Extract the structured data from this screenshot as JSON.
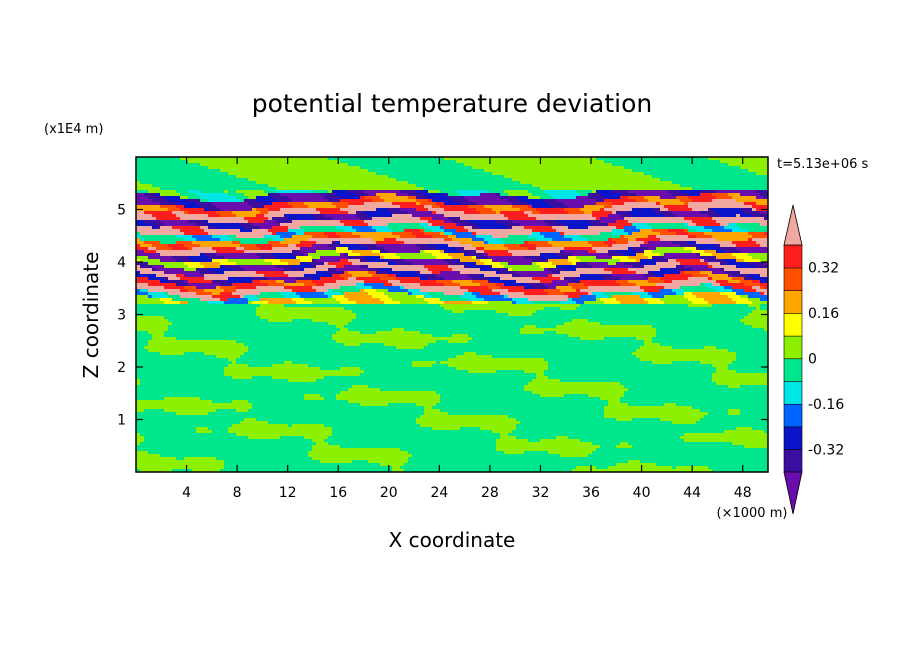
{
  "chart_data": {
    "type": "heatmap",
    "title": "potential temperature deviation",
    "xlabel": "X coordinate",
    "ylabel": "Z coordinate",
    "x_unit": "(×1000 m)",
    "y_unit": "(x1E4 m)",
    "time_label": "t=5.13e+06 s",
    "xlim": [
      0,
      50
    ],
    "ylim": [
      0,
      6
    ],
    "x_ticks": [
      4,
      8,
      12,
      16,
      20,
      24,
      28,
      32,
      36,
      40,
      44,
      48
    ],
    "y_ticks": [
      1,
      2,
      3,
      4,
      5
    ],
    "colorbar": {
      "levels": [
        -0.4,
        -0.32,
        -0.24,
        -0.16,
        -0.08,
        0,
        0.08,
        0.16,
        0.24,
        0.32,
        0.4
      ],
      "labels": [
        "0.32",
        "0.16",
        "0",
        "-0.16",
        "-0.32"
      ],
      "label_values": [
        0.32,
        0.16,
        0,
        -0.16,
        -0.32
      ],
      "colors": [
        "#6a0dad",
        "#3a0fa0",
        "#0a14c8",
        "#0064ff",
        "#00e6e6",
        "#00e68c",
        "#8cf000",
        "#ffff00",
        "#ffa500",
        "#ff5000",
        "#ff1e1e",
        "#f0a8a0"
      ],
      "extend": "both"
    },
    "bands": [
      {
        "z": 5.6,
        "value": 0.02
      },
      {
        "z": 5.45,
        "value": -0.05
      },
      {
        "z": 5.2,
        "value": -0.38
      },
      {
        "z": 5.08,
        "value": 0.28
      },
      {
        "z": 4.95,
        "value": 0.45
      },
      {
        "z": 4.82,
        "value": -0.36
      },
      {
        "z": 4.68,
        "value": 0.45
      },
      {
        "z": 4.55,
        "value": -0.1
      },
      {
        "z": 4.42,
        "value": 0.25
      },
      {
        "z": 4.3,
        "value": 0.45
      },
      {
        "z": 4.2,
        "value": -0.38
      },
      {
        "z": 4.05,
        "value": 0.1
      },
      {
        "z": 3.95,
        "value": -0.38
      },
      {
        "z": 3.82,
        "value": 0.45
      },
      {
        "z": 3.72,
        "value": -0.36
      },
      {
        "z": 3.6,
        "value": 0.3
      },
      {
        "z": 3.48,
        "value": 0.45
      },
      {
        "z": 3.36,
        "value": -0.12
      },
      {
        "z": 3.25,
        "value": 0.12
      }
    ]
  }
}
